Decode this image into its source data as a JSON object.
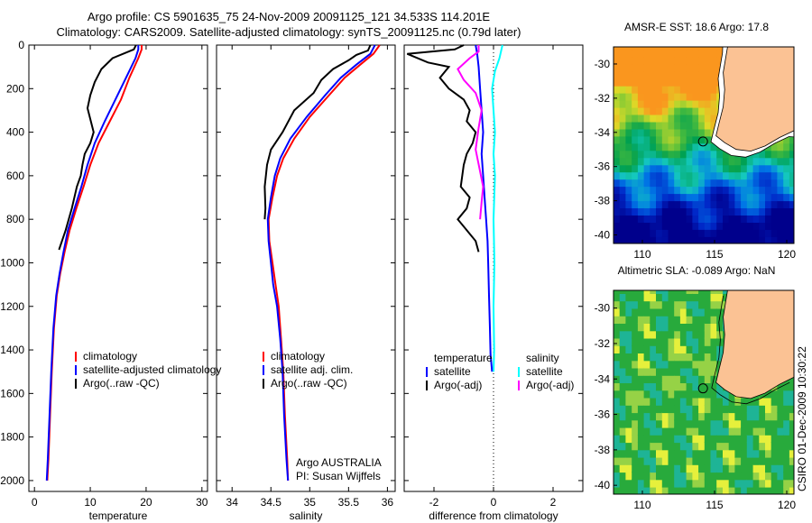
{
  "title_line1": "Argo profile: CS 5901635_75 24-Nov-2009 20091125_121 34.533S 114.201E",
  "title_line2": "Climatology: CARS2009. Satellite-adjusted climatology: synTS_20091125.nc (0.79d later)",
  "depth_ticks": [
    0,
    200,
    400,
    600,
    800,
    1000,
    1200,
    1400,
    1600,
    1800,
    2000
  ],
  "colors": {
    "red": "#ff0000",
    "blue": "#0000ff",
    "black": "#000000",
    "cyan": "#00ffff",
    "magenta": "#ff00ff",
    "land": "#fbc294"
  },
  "chart_data": [
    {
      "type": "line",
      "xlabel": "temperature",
      "xlim": [
        -1,
        31
      ],
      "ylim": [
        0,
        2050
      ],
      "y_reversed": true,
      "x_ticks": [
        0,
        10,
        20,
        30
      ],
      "legend": [
        "climatology",
        "satellite-adjusted climatology",
        "Argo(..raw -QC)"
      ],
      "series": [
        {
          "name": "climatology",
          "color": "red",
          "points": [
            [
              19.2,
              0
            ],
            [
              19.2,
              20
            ],
            [
              18.6,
              60
            ],
            [
              17.0,
              150
            ],
            [
              15.5,
              250
            ],
            [
              13.5,
              350
            ],
            [
              11.5,
              450
            ],
            [
              10.0,
              550
            ],
            [
              8.8,
              650
            ],
            [
              7.5,
              750
            ],
            [
              6.3,
              850
            ],
            [
              5.4,
              950
            ],
            [
              4.6,
              1050
            ],
            [
              4.0,
              1150
            ],
            [
              3.5,
              1300
            ],
            [
              3.1,
              1500
            ],
            [
              2.8,
              1700
            ],
            [
              2.5,
              1900
            ],
            [
              2.3,
              2000
            ]
          ]
        },
        {
          "name": "satellite-adjusted climatology",
          "color": "blue",
          "points": [
            [
              18.6,
              0
            ],
            [
              18.6,
              20
            ],
            [
              18.1,
              60
            ],
            [
              16.4,
              150
            ],
            [
              14.5,
              250
            ],
            [
              12.6,
              350
            ],
            [
              10.8,
              450
            ],
            [
              9.5,
              550
            ],
            [
              8.4,
              650
            ],
            [
              7.2,
              750
            ],
            [
              6.0,
              850
            ],
            [
              5.2,
              950
            ],
            [
              4.5,
              1050
            ],
            [
              3.9,
              1150
            ],
            [
              3.4,
              1300
            ],
            [
              3.0,
              1500
            ],
            [
              2.7,
              1700
            ],
            [
              2.4,
              1900
            ],
            [
              2.2,
              2000
            ]
          ]
        },
        {
          "name": "Argo(..raw -QC)",
          "color": "black",
          "points": [
            [
              18.2,
              0
            ],
            [
              17.8,
              20
            ],
            [
              14.0,
              60
            ],
            [
              12.0,
              110
            ],
            [
              10.8,
              170
            ],
            [
              10.0,
              230
            ],
            [
              9.5,
              290
            ],
            [
              10.0,
              340
            ],
            [
              10.6,
              400
            ],
            [
              10.0,
              450
            ],
            [
              9.0,
              500
            ],
            [
              8.6,
              550
            ],
            [
              8.3,
              600
            ],
            [
              7.6,
              650
            ],
            [
              6.7,
              750
            ],
            [
              5.6,
              850
            ],
            [
              4.4,
              940
            ]
          ]
        }
      ]
    },
    {
      "type": "line",
      "xlabel": "salinity",
      "xlim": [
        33.8,
        36.1
      ],
      "ylim": [
        0,
        2050
      ],
      "y_reversed": true,
      "x_ticks": [
        34,
        34.5,
        35,
        35.5,
        36
      ],
      "legend": [
        "climatology",
        "satellite adj. clim.",
        "Argo(..raw -QC)"
      ],
      "annotation": [
        "Argo AUSTRALIA",
        "PI: Susan Wijffels"
      ],
      "series": [
        {
          "name": "climatology",
          "color": "red",
          "points": [
            [
              35.9,
              0
            ],
            [
              35.82,
              40
            ],
            [
              35.65,
              90
            ],
            [
              35.45,
              150
            ],
            [
              35.25,
              230
            ],
            [
              35.0,
              330
            ],
            [
              34.8,
              430
            ],
            [
              34.66,
              520
            ],
            [
              34.58,
              600
            ],
            [
              34.52,
              700
            ],
            [
              34.47,
              800
            ],
            [
              34.48,
              900
            ],
            [
              34.52,
              1000
            ],
            [
              34.56,
              1100
            ],
            [
              34.6,
              1200
            ],
            [
              34.63,
              1350
            ],
            [
              34.66,
              1500
            ],
            [
              34.68,
              1700
            ],
            [
              34.71,
              1900
            ],
            [
              34.72,
              2000
            ]
          ]
        },
        {
          "name": "satellite adj. clim.",
          "color": "blue",
          "points": [
            [
              35.84,
              0
            ],
            [
              35.78,
              40
            ],
            [
              35.6,
              90
            ],
            [
              35.4,
              150
            ],
            [
              35.2,
              230
            ],
            [
              34.96,
              330
            ],
            [
              34.75,
              430
            ],
            [
              34.62,
              520
            ],
            [
              34.55,
              600
            ],
            [
              34.5,
              700
            ],
            [
              34.46,
              800
            ],
            [
              34.47,
              900
            ],
            [
              34.5,
              1000
            ],
            [
              34.53,
              1100
            ],
            [
              34.58,
              1200
            ],
            [
              34.62,
              1350
            ],
            [
              34.65,
              1500
            ],
            [
              34.67,
              1700
            ],
            [
              34.7,
              1900
            ],
            [
              34.72,
              2000
            ]
          ]
        },
        {
          "name": "Argo(..raw -QC)",
          "color": "black",
          "points": [
            [
              35.78,
              0
            ],
            [
              35.75,
              25
            ],
            [
              35.6,
              45
            ],
            [
              35.5,
              70
            ],
            [
              35.3,
              110
            ],
            [
              35.15,
              160
            ],
            [
              35.05,
              220
            ],
            [
              34.8,
              300
            ],
            [
              34.65,
              400
            ],
            [
              34.5,
              480
            ],
            [
              34.45,
              550
            ],
            [
              34.42,
              650
            ],
            [
              34.43,
              750
            ],
            [
              34.42,
              800
            ]
          ]
        }
      ]
    },
    {
      "type": "line",
      "xlabel": "difference from climatology",
      "xlim": [
        -3,
        3
      ],
      "ylim": [
        0,
        2050
      ],
      "y_reversed": true,
      "x_ticks": [
        -2,
        0,
        2
      ],
      "reference_line_x": 0,
      "legend_groups": [
        {
          "heading": "temperature",
          "items": [
            "satellite",
            "Argo(-adj)"
          ]
        },
        {
          "heading": "salinity",
          "items": [
            "satellite",
            "Argo(-adj)"
          ]
        }
      ],
      "series": [
        {
          "name": "temperature satellite",
          "color": "blue",
          "points": [
            [
              -0.6,
              0
            ],
            [
              -0.55,
              40
            ],
            [
              -0.5,
              100
            ],
            [
              -0.45,
              200
            ],
            [
              -0.4,
              300
            ],
            [
              -0.35,
              400
            ],
            [
              -0.4,
              500
            ],
            [
              -0.35,
              600
            ],
            [
              -0.3,
              700
            ],
            [
              -0.25,
              800
            ],
            [
              -0.2,
              900
            ],
            [
              -0.18,
              1000
            ],
            [
              -0.15,
              1150
            ],
            [
              -0.12,
              1300
            ],
            [
              -0.1,
              1420
            ],
            [
              -0.05,
              1500
            ]
          ]
        },
        {
          "name": "temperature Argo(-adj)",
          "color": "black",
          "points": [
            [
              -1.0,
              0
            ],
            [
              -1.3,
              20
            ],
            [
              -2.9,
              40
            ],
            [
              -2.2,
              80
            ],
            [
              -1.5,
              100
            ],
            [
              -1.8,
              150
            ],
            [
              -1.5,
              200
            ],
            [
              -1.0,
              250
            ],
            [
              -0.8,
              300
            ],
            [
              -0.9,
              350
            ],
            [
              -0.6,
              400
            ],
            [
              -0.7,
              450
            ],
            [
              -0.9,
              500
            ],
            [
              -1.0,
              550
            ],
            [
              -1.1,
              650
            ],
            [
              -0.8,
              700
            ],
            [
              -0.9,
              750
            ],
            [
              -1.2,
              800
            ],
            [
              -0.9,
              850
            ],
            [
              -0.6,
              900
            ],
            [
              -0.5,
              950
            ]
          ]
        },
        {
          "name": "salinity satellite",
          "color": "cyan",
          "points": [
            [
              0.3,
              0
            ],
            [
              0.2,
              60
            ],
            [
              0.05,
              120
            ],
            [
              -0.05,
              200
            ],
            [
              0.0,
              300
            ],
            [
              0.05,
              400
            ],
            [
              0.0,
              500
            ],
            [
              0.05,
              600
            ],
            [
              0.0,
              800
            ],
            [
              0.03,
              1000
            ],
            [
              0.0,
              1200
            ],
            [
              0.02,
              1400
            ],
            [
              0.0,
              1500
            ]
          ]
        },
        {
          "name": "salinity Argo(-adj)",
          "color": "magenta",
          "points": [
            [
              -0.5,
              0
            ],
            [
              -0.5,
              30
            ],
            [
              -0.8,
              60
            ],
            [
              -1.2,
              110
            ],
            [
              -1.0,
              160
            ],
            [
              -0.6,
              220
            ],
            [
              -0.4,
              300
            ],
            [
              -0.5,
              380
            ],
            [
              -0.6,
              480
            ],
            [
              -0.45,
              580
            ],
            [
              -0.35,
              650
            ],
            [
              -0.4,
              720
            ],
            [
              -0.45,
              800
            ]
          ]
        }
      ]
    }
  ],
  "maps": [
    {
      "title": "AMSR-E SST: 18.6 Argo: 17.8",
      "kind": "sst",
      "xlim": [
        108,
        120.5
      ],
      "ylim": [
        -40.5,
        -29
      ],
      "x_ticks": [
        110,
        115,
        120
      ],
      "y_ticks": [
        -30,
        -32,
        -34,
        -36,
        -38,
        -40
      ],
      "marker": [
        114.2,
        -34.53
      ]
    },
    {
      "title": "Altimetric SLA: -0.089 Argo: NaN",
      "kind": "sla",
      "xlim": [
        108,
        120.5
      ],
      "ylim": [
        -40.5,
        -29
      ],
      "x_ticks": [
        110,
        115,
        120
      ],
      "y_ticks": [
        -30,
        -32,
        -34,
        -36,
        -38,
        -40
      ],
      "marker": [
        114.2,
        -34.53
      ]
    }
  ],
  "side_stamp": "CSIRO 01-Dec-2009 10:30:22"
}
